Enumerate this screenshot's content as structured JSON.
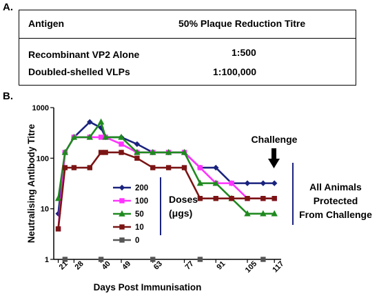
{
  "panel_a": {
    "label": "A.",
    "header": {
      "antigen": "Antigen",
      "titre": "50% Plaque Reduction Titre"
    },
    "rows": [
      {
        "antigen": "Recombinant VP2 Alone",
        "titre": "1:500"
      },
      {
        "antigen": "Doubled-shelled VLPs",
        "titre": "1:100,000"
      }
    ]
  },
  "panel_b": {
    "label": "B."
  },
  "chart_data": {
    "type": "line",
    "xlabel": "Days Post Immunisation",
    "ylabel": "Neutralising Antibody Titre",
    "yscale": "log",
    "ylim": [
      1,
      1000
    ],
    "xlim": [
      19,
      120
    ],
    "y_tick_labels": [
      "1",
      "10",
      "100",
      "1000"
    ],
    "x_tick_values": [
      21,
      28,
      40,
      49,
      63,
      77,
      91,
      105,
      117
    ],
    "x_tick_labels": [
      "21",
      "28",
      "40",
      "49",
      "63",
      "77",
      "91",
      "105",
      "117"
    ],
    "legend_title": "Doses (μgs)",
    "legend_position": "center-left",
    "annotations": {
      "challenge": "Challenge",
      "outcome": [
        "All Animals",
        "Protected",
        "From Challenge"
      ]
    },
    "challenge_day": 112,
    "colors": {
      "200": "#1a237e",
      "100": "#ff33ff",
      "50": "#1f8a1f",
      "10": "#7b1414",
      "0": "#555555"
    },
    "series": [
      {
        "name": "200",
        "color": "#1a237e",
        "marker": "diamond",
        "x": [
          21,
          24,
          28,
          35,
          40,
          42,
          49,
          56,
          63,
          70,
          77,
          84,
          91,
          98,
          105,
          112,
          117
        ],
        "y": [
          8,
          130,
          260,
          520,
          400,
          260,
          260,
          190,
          130,
          130,
          130,
          65,
          65,
          32,
          32,
          32,
          32
        ]
      },
      {
        "name": "100",
        "color": "#ff33ff",
        "marker": "square",
        "x": [
          21,
          24,
          28,
          35,
          40,
          42,
          49,
          56,
          63,
          70,
          77,
          84,
          91,
          98,
          105,
          112,
          117
        ],
        "y": [
          4,
          130,
          260,
          260,
          260,
          260,
          190,
          130,
          130,
          130,
          130,
          65,
          32,
          32,
          16,
          16,
          16
        ]
      },
      {
        "name": "50",
        "color": "#1f8a1f",
        "marker": "triangle",
        "x": [
          21,
          24,
          28,
          35,
          40,
          42,
          49,
          56,
          63,
          70,
          77,
          84,
          91,
          98,
          105,
          112,
          117
        ],
        "y": [
          16,
          130,
          260,
          260,
          520,
          260,
          260,
          130,
          130,
          130,
          130,
          32,
          32,
          16,
          8,
          8,
          8
        ]
      },
      {
        "name": "10",
        "color": "#7b1414",
        "marker": "square",
        "x": [
          21,
          24,
          28,
          35,
          40,
          42,
          49,
          56,
          63,
          70,
          77,
          84,
          91,
          98,
          105,
          112,
          117
        ],
        "y": [
          4,
          65,
          65,
          65,
          130,
          130,
          130,
          100,
          65,
          65,
          65,
          16,
          16,
          16,
          16,
          16,
          16
        ]
      },
      {
        "name": "0",
        "color": "#555555",
        "marker": "square",
        "x": [
          24,
          40,
          63,
          84,
          112
        ],
        "y": [
          1,
          1,
          1,
          1,
          1
        ]
      }
    ]
  }
}
